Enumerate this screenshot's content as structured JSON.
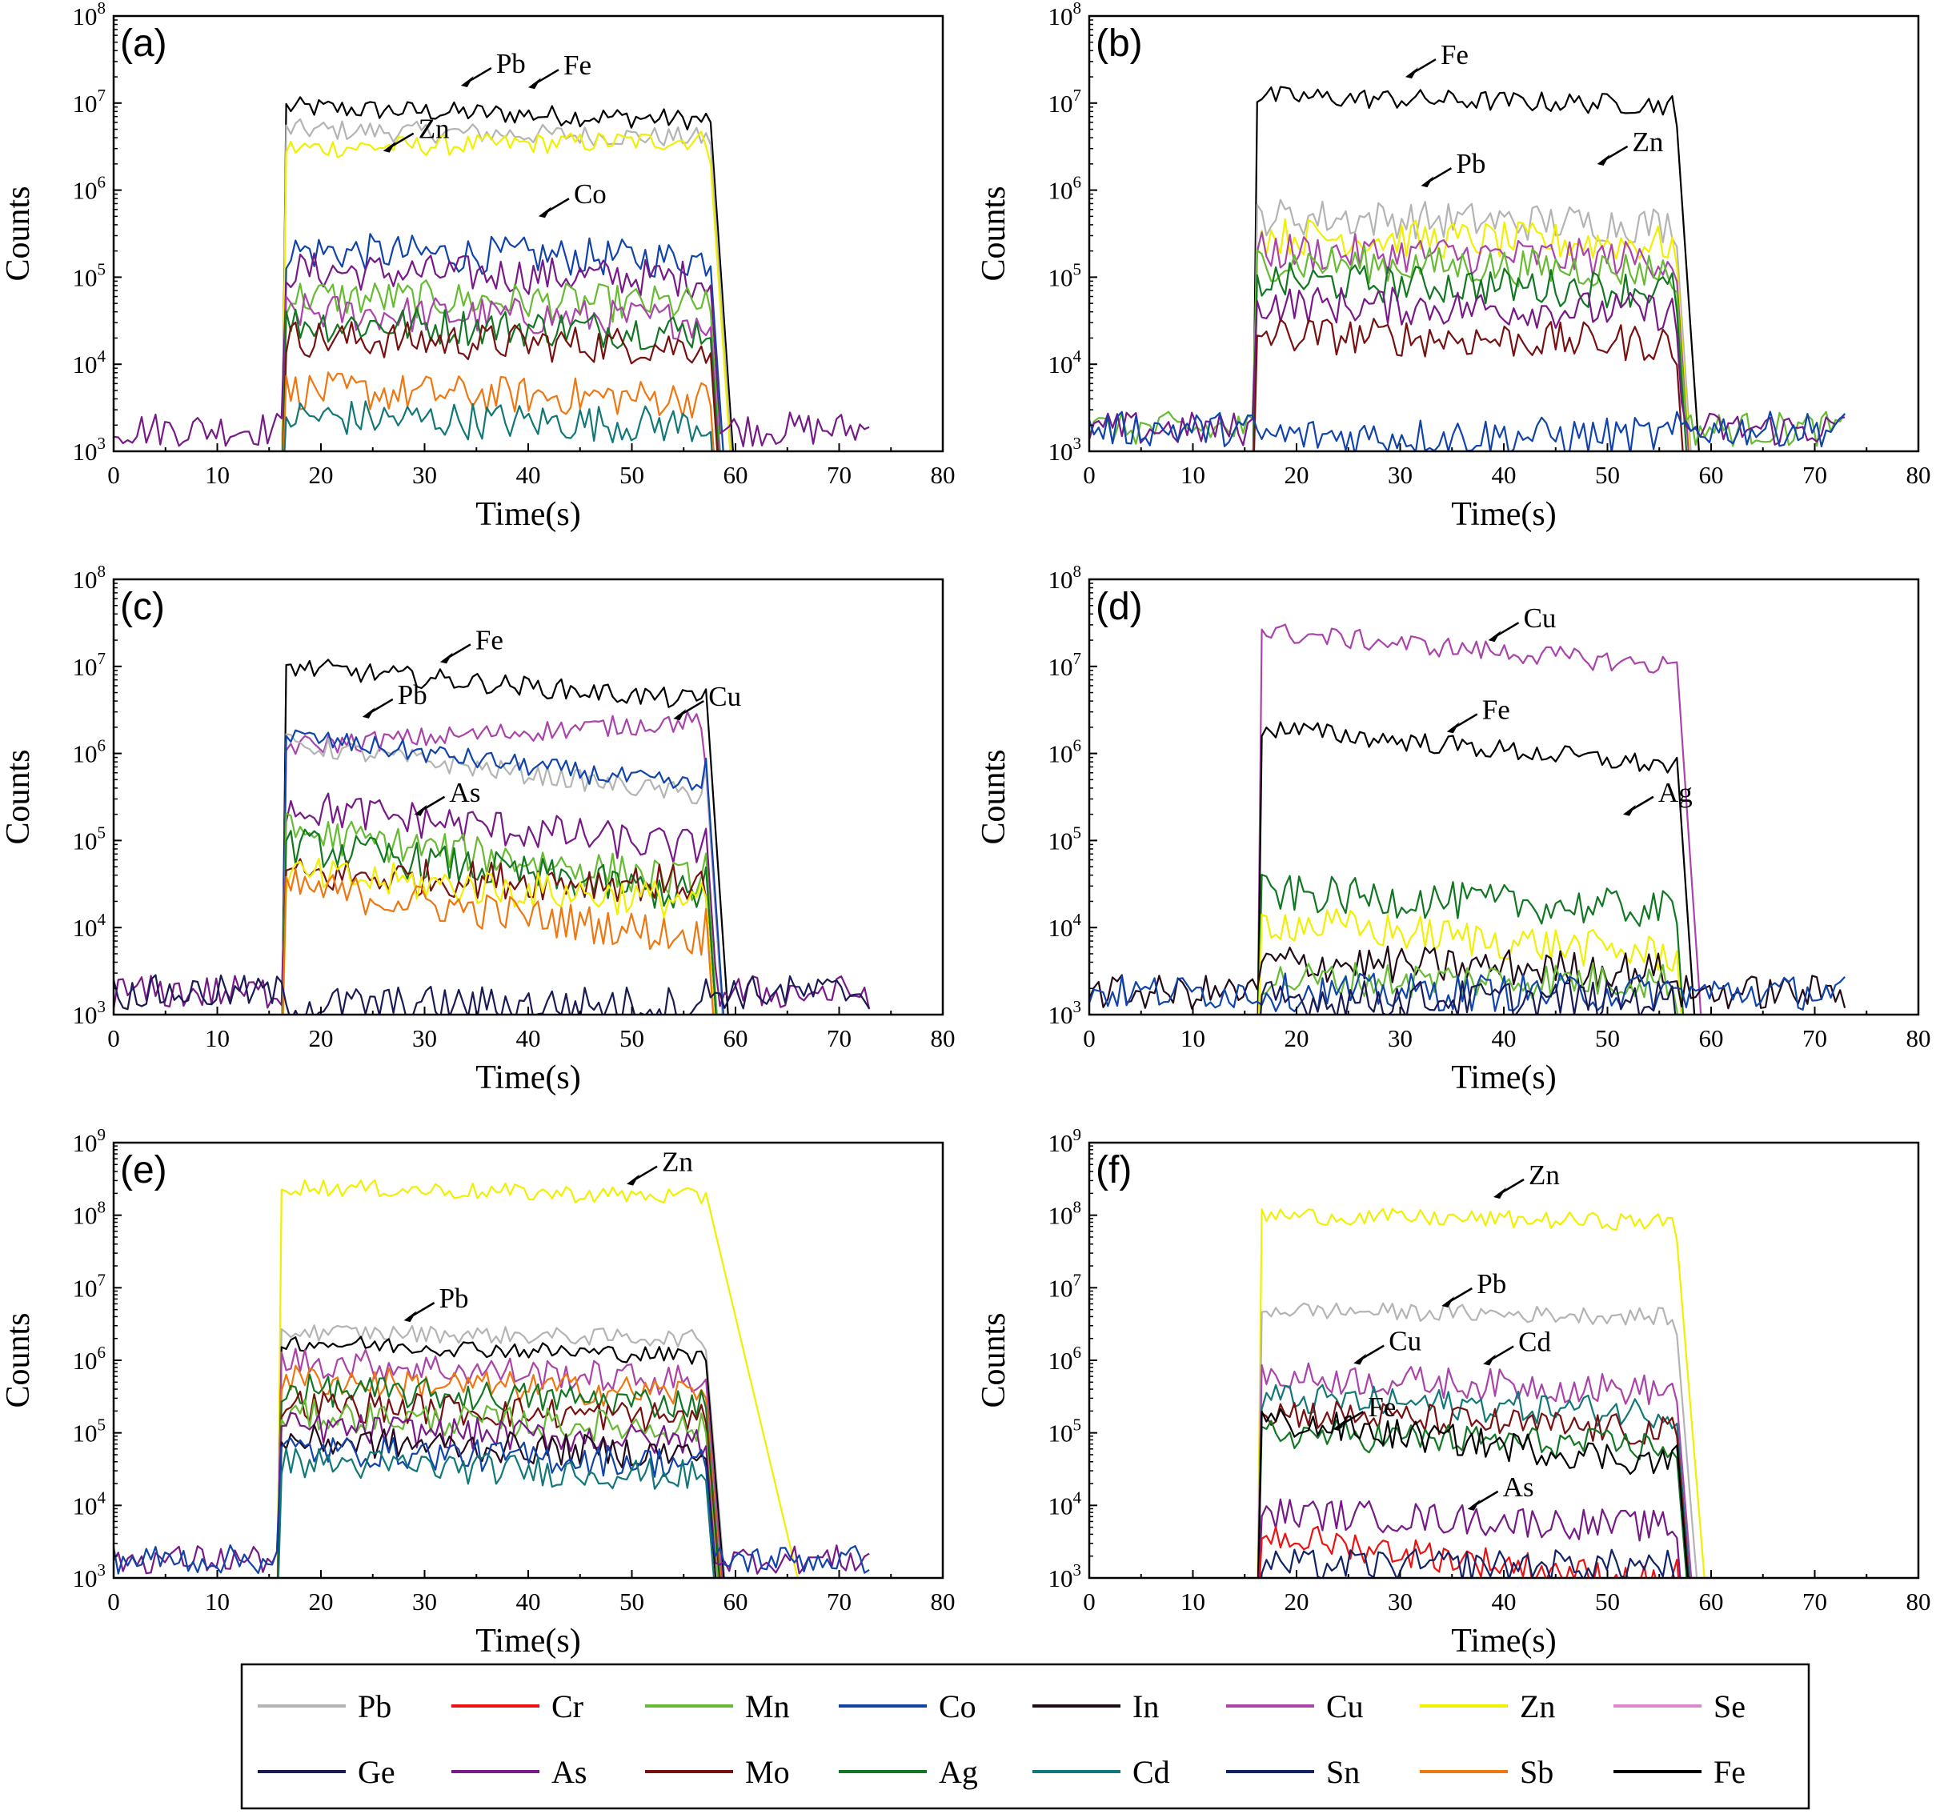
{
  "chart_data": [
    {
      "type": "line",
      "panel": "(a)",
      "yscale": "log",
      "xlabel": "Time(s)",
      "ylabel": "Counts",
      "xlim": [
        0,
        80
      ],
      "ylim_exp": [
        3,
        8
      ],
      "xticks": [
        "0",
        "10",
        "20",
        "30",
        "40",
        "50",
        "60",
        "70",
        "80"
      ],
      "ytick_exps": [
        3,
        4,
        5,
        6,
        7,
        8
      ],
      "signal": [
        16.5,
        57.5
      ],
      "series": [
        {
          "name": "Fe",
          "level": 9000000,
          "decay": 0.85
        },
        {
          "name": "Pb",
          "level": 5000000,
          "decay": 0.9
        },
        {
          "name": "Zn",
          "level": 3000000,
          "decay": 1.1
        },
        {
          "name": "Co",
          "level": 200000,
          "decay": 0.9
        },
        {
          "name": "As",
          "level": 120000,
          "decay": 0.9
        },
        {
          "name": "Mn",
          "level": 60000,
          "decay": 0.9
        },
        {
          "name": "Cu",
          "level": 40000,
          "decay": 0.9
        },
        {
          "name": "Ag",
          "level": 30000,
          "decay": 0.9
        },
        {
          "name": "Mo",
          "level": 20000,
          "decay": 0.9
        },
        {
          "name": "Sb",
          "level": 5000,
          "decay": 0.9
        },
        {
          "name": "Cd",
          "level": 2500,
          "decay": 0.9
        }
      ],
      "annotations": [
        {
          "label": "Pb",
          "x": 33.5,
          "exp": 7.2
        },
        {
          "label": "Fe",
          "x": 40,
          "exp": 7.18
        },
        {
          "label": "Zn",
          "x": 26,
          "exp": 6.45
        },
        {
          "label": "Co",
          "x": 41,
          "exp": 5.7
        }
      ]
    },
    {
      "type": "line",
      "panel": "(b)",
      "yscale": "log",
      "xlabel": "Time(s)",
      "ylabel": "Counts",
      "xlim": [
        0,
        80
      ],
      "ylim_exp": [
        3,
        8
      ],
      "xticks": [
        "0",
        "10",
        "20",
        "30",
        "40",
        "50",
        "60",
        "70",
        "80"
      ],
      "ytick_exps": [
        3,
        4,
        5,
        6,
        7,
        8
      ],
      "signal": [
        16,
        56.5
      ],
      "series": [
        {
          "name": "Fe",
          "level": 12000000,
          "decay": 0.9
        },
        {
          "name": "Pb",
          "level": 500000,
          "decay": 0.9
        },
        {
          "name": "Zn",
          "level": 300000,
          "decay": 0.9
        },
        {
          "name": "Cu",
          "level": 200000,
          "decay": 0.9
        },
        {
          "name": "Mn",
          "level": 150000,
          "decay": 0.9
        },
        {
          "name": "Ag",
          "level": 90000,
          "decay": 0.9
        },
        {
          "name": "As",
          "level": 50000,
          "decay": 0.9
        },
        {
          "name": "Mo",
          "level": 22000,
          "decay": 0.9
        },
        {
          "name": "Co",
          "level": 1500,
          "decay": 1
        }
      ],
      "annotations": [
        {
          "label": "Fe",
          "x": 30.5,
          "exp": 7.3
        },
        {
          "label": "Pb",
          "x": 32,
          "exp": 6.05
        },
        {
          "label": "Zn",
          "x": 49,
          "exp": 6.3
        }
      ]
    },
    {
      "type": "line",
      "panel": "(c)",
      "yscale": "log",
      "xlabel": "Time(s)",
      "ylabel": "Counts",
      "xlim": [
        0,
        80
      ],
      "ylim_exp": [
        3,
        8
      ],
      "xticks": [
        "0",
        "10",
        "20",
        "30",
        "40",
        "50",
        "60",
        "70",
        "80"
      ],
      "ytick_exps": [
        3,
        4,
        5,
        6,
        7,
        8
      ],
      "signal": [
        16.5,
        57
      ],
      "series": [
        {
          "name": "Fe",
          "level": 10000000,
          "decay": 0.6
        },
        {
          "name": "Cu",
          "level": 1200000,
          "decay": 1.3
        },
        {
          "name": "Pb",
          "level": 1300000,
          "decay": 0.4
        },
        {
          "name": "Co",
          "level": 1600000,
          "decay": 0.4
        },
        {
          "name": "As",
          "level": 250000,
          "decay": 0.5
        },
        {
          "name": "Mn",
          "level": 130000,
          "decay": 0.4
        },
        {
          "name": "Ag",
          "level": 90000,
          "decay": 0.4
        },
        {
          "name": "Mo",
          "level": 40000,
          "decay": 0.9
        },
        {
          "name": "Zn",
          "level": 40000,
          "decay": 0.7
        },
        {
          "name": "Sb",
          "level": 30000,
          "decay": 0.4
        },
        {
          "name": "Ge",
          "level": 1300,
          "decay": 1
        }
      ],
      "annotations": [
        {
          "label": "Fe",
          "x": 31.5,
          "exp": 7.05
        },
        {
          "label": "Pb",
          "x": 24,
          "exp": 6.42
        },
        {
          "label": "Cu",
          "x": 54,
          "exp": 6.4
        },
        {
          "label": "As",
          "x": 29,
          "exp": 5.3
        }
      ]
    },
    {
      "type": "line",
      "panel": "(d)",
      "yscale": "log",
      "xlabel": "Time(s)",
      "ylabel": "Counts",
      "xlim": [
        0,
        80
      ],
      "ylim_exp": [
        3,
        8
      ],
      "xticks": [
        "0",
        "10",
        "20",
        "30",
        "40",
        "50",
        "60",
        "70",
        "80"
      ],
      "ytick_exps": [
        3,
        4,
        5,
        6,
        7,
        8
      ],
      "signal": [
        16.5,
        56.5
      ],
      "series": [
        {
          "name": "Cu",
          "level": 25000000,
          "decay": 0.6
        },
        {
          "name": "Fe",
          "level": 2000000,
          "decay": 0.55
        },
        {
          "name": "Ag",
          "level": 25000,
          "decay": 0.8
        },
        {
          "name": "Zn",
          "level": 12000,
          "decay": 0.6
        },
        {
          "name": "In",
          "level": 4000,
          "decay": 0.9
        },
        {
          "name": "Mn",
          "level": 2500,
          "decay": 1
        },
        {
          "name": "Co",
          "level": 1800,
          "decay": 1
        },
        {
          "name": "Ge",
          "level": 1500,
          "decay": 1
        }
      ],
      "annotations": [
        {
          "label": "Cu",
          "x": 38.5,
          "exp": 7.3
        },
        {
          "label": "Fe",
          "x": 34.5,
          "exp": 6.25
        },
        {
          "label": "Ag",
          "x": 51.5,
          "exp": 5.3
        }
      ]
    },
    {
      "type": "line",
      "panel": "(e)",
      "yscale": "log",
      "xlabel": "Time(s)",
      "ylabel": "Counts",
      "xlim": [
        0,
        80
      ],
      "ylim_exp": [
        3,
        9
      ],
      "xticks": [
        "0",
        "10",
        "20",
        "30",
        "40",
        "50",
        "60",
        "70",
        "80"
      ],
      "ytick_exps": [
        3,
        4,
        5,
        6,
        7,
        8,
        9
      ],
      "signal": [
        16,
        57
      ],
      "series": [
        {
          "name": "Zn",
          "level": 250000000,
          "decay": 0.85
        },
        {
          "name": "Pb",
          "level": 2500000,
          "decay": 0.9
        },
        {
          "name": "Fe",
          "level": 1800000,
          "decay": 0.8
        },
        {
          "name": "Cu",
          "level": 1000000,
          "decay": 0.7
        },
        {
          "name": "Sb",
          "level": 550000,
          "decay": 0.8
        },
        {
          "name": "Ag",
          "level": 400000,
          "decay": 0.8
        },
        {
          "name": "Mo",
          "level": 250000,
          "decay": 0.8
        },
        {
          "name": "Mn",
          "level": 180000,
          "decay": 0.8
        },
        {
          "name": "As",
          "level": 120000,
          "decay": 0.8
        },
        {
          "name": "In",
          "level": 80000,
          "decay": 0.8
        },
        {
          "name": "Co",
          "level": 60000,
          "decay": 0.8
        },
        {
          "name": "Cd",
          "level": 40000,
          "decay": 0.8
        }
      ],
      "annotations": [
        {
          "label": "Zn",
          "x": 49.5,
          "exp": 8.43
        },
        {
          "label": "Pb",
          "x": 28,
          "exp": 6.55
        }
      ]
    },
    {
      "type": "line",
      "panel": "(f)",
      "yscale": "log",
      "xlabel": "Time(s)",
      "ylabel": "Counts",
      "xlim": [
        0,
        80
      ],
      "ylim_exp": [
        3,
        9
      ],
      "xticks": [
        "0",
        "10",
        "20",
        "30",
        "40",
        "50",
        "60",
        "70",
        "80"
      ],
      "ytick_exps": [
        3,
        4,
        5,
        6,
        7,
        8,
        9
      ],
      "signal": [
        16.5,
        56.5
      ],
      "series": [
        {
          "name": "Zn",
          "level": 100000000,
          "decay": 0.9
        },
        {
          "name": "Pb",
          "level": 5000000,
          "decay": 0.9
        },
        {
          "name": "Cu",
          "level": 600000,
          "decay": 0.8
        },
        {
          "name": "Cd",
          "level": 300000,
          "decay": 0.8
        },
        {
          "name": "Mo",
          "level": 200000,
          "decay": 0.7
        },
        {
          "name": "Ag",
          "level": 100000,
          "decay": 0.8
        },
        {
          "name": "Fe",
          "level": 150000,
          "decay": 0.4
        },
        {
          "name": "As",
          "level": 8000,
          "decay": 0.8
        },
        {
          "name": "Cr",
          "level": 4000,
          "decay": 0.3
        },
        {
          "name": "Sn",
          "level": 1500,
          "decay": 1
        }
      ],
      "annotations": [
        {
          "label": "Zn",
          "x": 39,
          "exp": 8.25
        },
        {
          "label": "Pb",
          "x": 34,
          "exp": 6.75
        },
        {
          "label": "Cu",
          "x": 25.5,
          "exp": 5.96
        },
        {
          "label": "Cd",
          "x": 38,
          "exp": 5.95
        },
        {
          "label": "Fe",
          "x": 23.5,
          "exp": 5.05
        },
        {
          "label": "As",
          "x": 36.5,
          "exp": 3.95
        }
      ]
    }
  ],
  "legend": [
    {
      "name": "Pb",
      "color": "#b4b4b4"
    },
    {
      "name": "Cr",
      "color": "#ee1111"
    },
    {
      "name": "Mn",
      "color": "#66bb33"
    },
    {
      "name": "Co",
      "color": "#1144aa"
    },
    {
      "name": "In",
      "color": "#220a18"
    },
    {
      "name": "Cu",
      "color": "#aa44aa"
    },
    {
      "name": "Zn",
      "color": "#f0f000"
    },
    {
      "name": "Se",
      "color": "#dd88cc"
    },
    {
      "name": "Ge",
      "color": "#1a1a55"
    },
    {
      "name": "As",
      "color": "#771a88"
    },
    {
      "name": "Mo",
      "color": "#771111"
    },
    {
      "name": "Ag",
      "color": "#117722"
    },
    {
      "name": "Cd",
      "color": "#117777"
    },
    {
      "name": "Sn",
      "color": "#112266"
    },
    {
      "name": "Sb",
      "color": "#ee7711"
    },
    {
      "name": "Fe",
      "color": "#000000"
    }
  ]
}
